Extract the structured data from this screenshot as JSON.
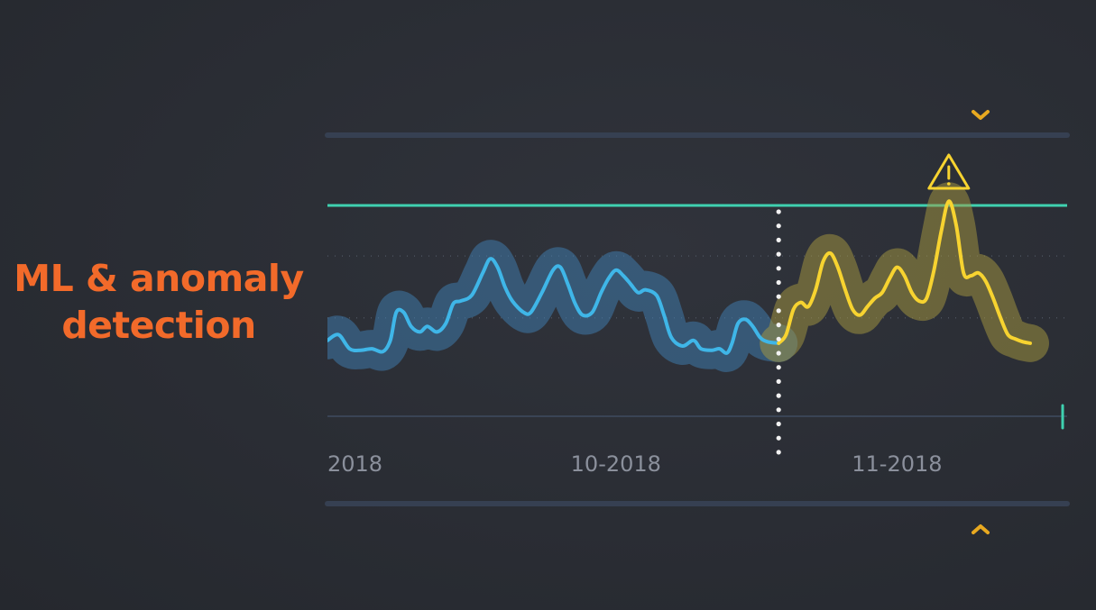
{
  "headline": {
    "line1": "ML & anomaly",
    "line2": "detection"
  },
  "chart_data": {
    "type": "line",
    "title": "",
    "xlabel": "",
    "ylabel": "",
    "x_tick_labels": [
      "2018",
      "10-2018",
      "11-2018"
    ],
    "x_range": [
      0,
      100
    ],
    "y_range": [
      0,
      100
    ],
    "grid": "dotted horizontal",
    "threshold": 75,
    "forecast_start_x": 61,
    "series": [
      {
        "role": "history",
        "color": "#3fb6e8",
        "band_color": "#3f7fb4",
        "points": [
          [
            0,
            27
          ],
          [
            1.5,
            29
          ],
          [
            3,
            24
          ],
          [
            4.5,
            23.5
          ],
          [
            6,
            24
          ],
          [
            7.5,
            23
          ],
          [
            8.5,
            27
          ],
          [
            9.3,
            37
          ],
          [
            10.3,
            37
          ],
          [
            11.3,
            32
          ],
          [
            12.5,
            30
          ],
          [
            13.5,
            32
          ],
          [
            14.8,
            30
          ],
          [
            16,
            33
          ],
          [
            17,
            40
          ],
          [
            18,
            41
          ],
          [
            19.5,
            43
          ],
          [
            21,
            51
          ],
          [
            22,
            56
          ],
          [
            23,
            53
          ],
          [
            24,
            46
          ],
          [
            25,
            41
          ],
          [
            26.5,
            37
          ],
          [
            27.5,
            37
          ],
          [
            29,
            44
          ],
          [
            30.5,
            52
          ],
          [
            31.5,
            53
          ],
          [
            32.5,
            47
          ],
          [
            33.5,
            40
          ],
          [
            34.5,
            36
          ],
          [
            35.8,
            37
          ],
          [
            37,
            44
          ],
          [
            38,
            49
          ],
          [
            39,
            52
          ],
          [
            40,
            50
          ],
          [
            41,
            47
          ],
          [
            42,
            44
          ],
          [
            43,
            45
          ],
          [
            44.5,
            43
          ],
          [
            45.5,
            36
          ],
          [
            46.5,
            28
          ],
          [
            48,
            25
          ],
          [
            49.5,
            27
          ],
          [
            50.5,
            24
          ],
          [
            52,
            23.5
          ],
          [
            53,
            24
          ],
          [
            54,
            22.5
          ],
          [
            54.7,
            26
          ],
          [
            55.5,
            33
          ],
          [
            56.5,
            34.5
          ],
          [
            57.5,
            32
          ],
          [
            58.5,
            28
          ],
          [
            59.5,
            26.5
          ],
          [
            61,
            26
          ]
        ]
      },
      {
        "role": "forecast",
        "color": "#f7d330",
        "band_color": "#a89a40",
        "points": [
          [
            61,
            26
          ],
          [
            62,
            29
          ],
          [
            63,
            38
          ],
          [
            64,
            40.5
          ],
          [
            65,
            39
          ],
          [
            66,
            45
          ],
          [
            67,
            55
          ],
          [
            68,
            58
          ],
          [
            69,
            53
          ],
          [
            70,
            45
          ],
          [
            71,
            38
          ],
          [
            72,
            36
          ],
          [
            73,
            39
          ],
          [
            74,
            42
          ],
          [
            75,
            44
          ],
          [
            76,
            49
          ],
          [
            77,
            53
          ],
          [
            78,
            50
          ],
          [
            79,
            44
          ],
          [
            80,
            41
          ],
          [
            81,
            42
          ],
          [
            82,
            52
          ],
          [
            83,
            66
          ],
          [
            84,
            76.5
          ],
          [
            85,
            68
          ],
          [
            86,
            51
          ],
          [
            87,
            50
          ],
          [
            88,
            51
          ],
          [
            89,
            48
          ],
          [
            90,
            42
          ],
          [
            91,
            35
          ],
          [
            92,
            29
          ],
          [
            93,
            27.5
          ],
          [
            94,
            26.5
          ],
          [
            95,
            26
          ]
        ]
      }
    ],
    "anomaly_x": 84,
    "anomaly_label_icon": "warning-triangle-icon"
  },
  "colors": {
    "headline": "#f26a2a",
    "threshold": "#3fd1b0",
    "axis_tick_text": "#8b909c",
    "rail": "#3a4354",
    "marker": "#e8a920"
  },
  "icons": {
    "top_marker": "chevron-down-icon",
    "bottom_marker": "chevron-up-icon",
    "warning": "warning-triangle-icon"
  }
}
